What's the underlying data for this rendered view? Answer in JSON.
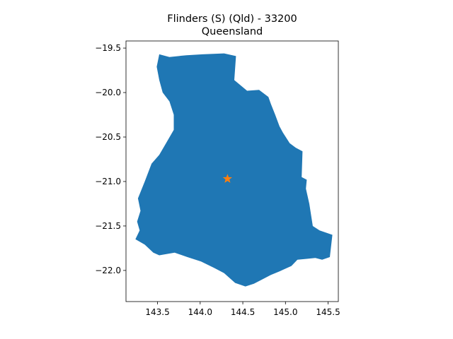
{
  "title": "Flinders (S) (Qld) - 33200",
  "subtitle": "Queensland",
  "chart_data": {
    "type": "map",
    "region_name": "Flinders (S) (Qld) - 33200",
    "state": "Queensland",
    "xlim": [
      143.13,
      145.62
    ],
    "ylim": [
      -22.35,
      -19.42
    ],
    "x_ticks": [
      143.5,
      144.0,
      144.5,
      145.0,
      145.5
    ],
    "x_tick_labels": [
      "143.5",
      "144.0",
      "144.5",
      "145.0",
      "145.5"
    ],
    "y_ticks": [
      -19.5,
      -20.0,
      -20.5,
      -21.0,
      -21.5,
      -22.0
    ],
    "y_tick_labels": [
      "−19.5",
      "−20.0",
      "−20.5",
      "−21.0",
      "−21.5",
      "−22.0"
    ],
    "polygon_color": "#1f77b4",
    "marker_color": "#ff7f0e",
    "marker_shape": "star",
    "centroid": [
      144.32,
      -20.97
    ],
    "boundary": [
      [
        143.52,
        -19.57
      ],
      [
        143.64,
        -19.6
      ],
      [
        143.84,
        -19.58
      ],
      [
        144.03,
        -19.57
      ],
      [
        144.28,
        -19.56
      ],
      [
        144.42,
        -19.59
      ],
      [
        144.4,
        -19.86
      ],
      [
        144.55,
        -19.98
      ],
      [
        144.69,
        -19.97
      ],
      [
        144.8,
        -20.05
      ],
      [
        144.83,
        -20.13
      ],
      [
        144.88,
        -20.25
      ],
      [
        144.93,
        -20.38
      ],
      [
        144.97,
        -20.45
      ],
      [
        145.05,
        -20.57
      ],
      [
        145.12,
        -20.62
      ],
      [
        145.2,
        -20.66
      ],
      [
        145.19,
        -20.95
      ],
      [
        145.25,
        -20.98
      ],
      [
        145.24,
        -21.08
      ],
      [
        145.28,
        -21.25
      ],
      [
        145.32,
        -21.5
      ],
      [
        145.4,
        -21.55
      ],
      [
        145.55,
        -21.6
      ],
      [
        145.52,
        -21.85
      ],
      [
        145.43,
        -21.88
      ],
      [
        145.35,
        -21.86
      ],
      [
        145.25,
        -21.87
      ],
      [
        145.14,
        -21.88
      ],
      [
        145.07,
        -21.95
      ],
      [
        144.93,
        -22.01
      ],
      [
        144.83,
        -22.05
      ],
      [
        144.73,
        -22.1
      ],
      [
        144.63,
        -22.15
      ],
      [
        144.53,
        -22.18
      ],
      [
        144.41,
        -22.14
      ],
      [
        144.28,
        -22.03
      ],
      [
        144.16,
        -21.97
      ],
      [
        144.01,
        -21.9
      ],
      [
        143.85,
        -21.85
      ],
      [
        143.7,
        -21.8
      ],
      [
        143.52,
        -21.83
      ],
      [
        143.45,
        -21.8
      ],
      [
        143.35,
        -21.71
      ],
      [
        143.24,
        -21.65
      ],
      [
        143.29,
        -21.55
      ],
      [
        143.26,
        -21.45
      ],
      [
        143.3,
        -21.33
      ],
      [
        143.27,
        -21.19
      ],
      [
        143.35,
        -21.0
      ],
      [
        143.43,
        -20.8
      ],
      [
        143.52,
        -20.7
      ],
      [
        143.6,
        -20.57
      ],
      [
        143.69,
        -20.42
      ],
      [
        143.69,
        -20.25
      ],
      [
        143.64,
        -20.1
      ],
      [
        143.56,
        -20.0
      ],
      [
        143.52,
        -19.86
      ],
      [
        143.49,
        -19.71
      ]
    ]
  }
}
